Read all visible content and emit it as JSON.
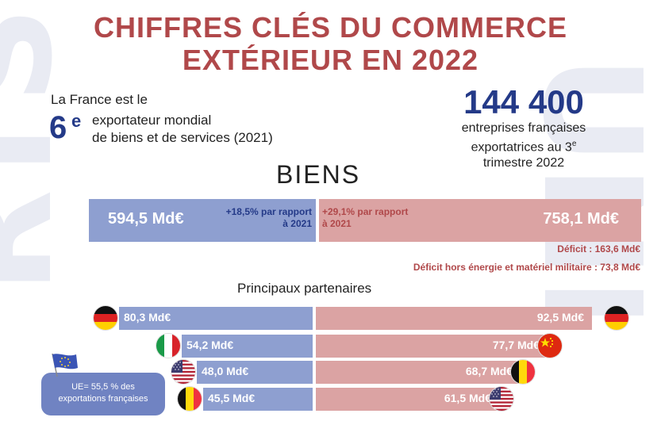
{
  "title_line1": "CHIFFRES CLÉS DU COMMERCE",
  "title_line2": "EXTÉRIEUR EN 2022",
  "rank": {
    "intro": "La France est le",
    "number": "6",
    "suffix": "e",
    "desc_line1": "exportateur mondial",
    "desc_line2": "de biens et de services (2021)"
  },
  "enterprises": {
    "number": "144 400",
    "line1": "entreprises françaises",
    "line2a": "exportatrices au 3",
    "line2_sup": "e",
    "line3": "trimestre 2022"
  },
  "section_title": "BIENS",
  "exports": {
    "value": "594,5 Md€",
    "growth_line1": "+18,5% par rapport",
    "growth_line2": "à 2021"
  },
  "imports": {
    "value": "758,1 Md€",
    "growth_line1": "+29,1% par rapport",
    "growth_line2": "à 2021"
  },
  "deficit": "Déficit : 163,6 Md€",
  "deficit_excl": "Déficit hors énergie et matériel militaire : 73,8 Md€",
  "partners_title": "Principaux partenaires",
  "export_partners": [
    {
      "flag": "germany-flag",
      "value": "80,3 Md€",
      "amount": 80.3
    },
    {
      "flag": "italy-flag",
      "value": "54,2 Md€",
      "amount": 54.2
    },
    {
      "flag": "usa-flag",
      "value": "48,0 Md€",
      "amount": 48.0
    },
    {
      "flag": "belgium-flag",
      "value": "45,5 Md€",
      "amount": 45.5
    }
  ],
  "import_partners": [
    {
      "flag": "germany-flag",
      "value": "92,5 Md€",
      "amount": 92.5
    },
    {
      "flag": "china-flag",
      "value": "77,7 Md€",
      "amount": 77.7
    },
    {
      "flag": "belgium-flag",
      "value": "68,7 Md€",
      "amount": 68.7
    },
    {
      "flag": "usa-flag",
      "value": "61,5 Md€",
      "amount": 61.5
    }
  ],
  "eu_note_line1": "UE= 55,5 % des",
  "eu_note_line2": "exportations françaises",
  "colors": {
    "title_red": "#b0484a",
    "navy": "#243a88",
    "export_blue": "#8e9fd0",
    "import_pink": "#dba3a3"
  }
}
